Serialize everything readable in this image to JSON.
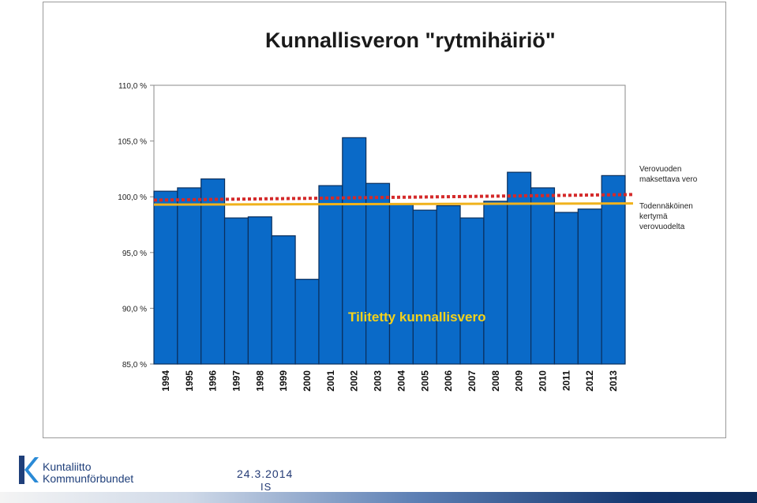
{
  "chart_data": {
    "type": "bar",
    "title": "Kunnallisveron \"rytmihäiriö\"",
    "categories": [
      "1994",
      "1995",
      "1996",
      "1997",
      "1998",
      "1999",
      "2000",
      "2001",
      "2002",
      "2003",
      "2004",
      "2005",
      "2006",
      "2007",
      "2008",
      "2009",
      "2010",
      "2011",
      "2012",
      "2013"
    ],
    "series": [
      {
        "values": [
          100.5,
          100.8,
          101.6,
          98.1,
          98.2,
          96.5,
          92.6,
          101.0,
          105.3,
          101.2,
          99.3,
          98.8,
          99.2,
          98.1,
          99.6,
          102.2,
          100.8,
          98.6,
          98.9,
          101.9
        ]
      }
    ],
    "ylim": [
      85,
      110
    ],
    "yticks": [
      85,
      90,
      95,
      100,
      105,
      110
    ],
    "ytick_labels": [
      "85,0 %",
      "90,0 %",
      "95,0 %",
      "100,0 %",
      "105,0 %",
      "110,0 %"
    ],
    "reference_lines": [
      {
        "name": "Verovuoden maksettava vero",
        "label_lines": [
          "Verovuoden",
          "maksettava vero"
        ],
        "start": 99.7,
        "end": 100.2,
        "style": "dotted",
        "color": "#d42a2a"
      },
      {
        "name": "Todennäköinen kertymä verovuodelta",
        "label_lines": [
          "Todennäköinen",
          "kertymä",
          "verovuodelta"
        ],
        "start": 99.3,
        "end": 99.4,
        "style": "solid",
        "color": "#f0b21c"
      }
    ],
    "annotation": "Tilitetty kunnallisvero",
    "bar_color": "#0a6ac8",
    "grid": false,
    "legend_placement": "right"
  },
  "footer": {
    "logo_line1": "Kuntaliitto",
    "logo_line2": "Kommunförbundet",
    "date": "24.3.2014",
    "initials": "IS"
  },
  "colors": {
    "bar": "#0a6ac8",
    "bar_stroke": "#0b2f5c",
    "brand": "#1f3f7a"
  }
}
